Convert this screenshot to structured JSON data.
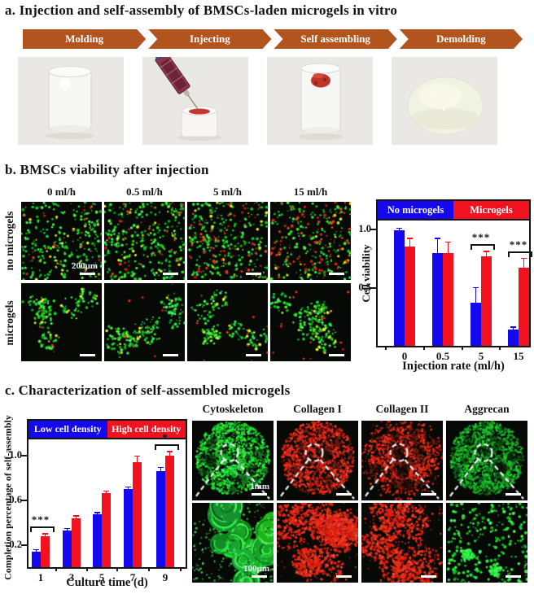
{
  "colors": {
    "arrow_orange": "#b2541e",
    "series_blue": "#1408ee",
    "series_red": "#f2121f",
    "micrograph_green": "#35d13c",
    "micrograph_red": "#e8281e"
  },
  "panel_a": {
    "title": "a. Injection and self-assembly of BMSCs-laden microgels in vitro",
    "steps": [
      "Molding",
      "Injecting",
      "Self assembling",
      "Demolding"
    ],
    "photos": [
      {
        "name": "empty-mold"
      },
      {
        "name": "syringe-injecting-microgels"
      },
      {
        "name": "self-assembled-construct"
      },
      {
        "name": "demolded-gel-disc"
      }
    ]
  },
  "panel_b": {
    "title": "b. BMSCs viability after injection",
    "col_labels": [
      "0 ml/h",
      "0.5 ml/h",
      "5 ml/h",
      "15 ml/h"
    ],
    "row_labels": [
      "no microgels",
      "microgels"
    ],
    "cells": [
      {
        "row": "no microgels",
        "col": "0 ml/h",
        "mode": "scatter",
        "green": 260,
        "red": 16,
        "seed": 1,
        "scale_label": "200µm"
      },
      {
        "row": "no microgels",
        "col": "0.5 ml/h",
        "mode": "scatter",
        "green": 300,
        "red": 30,
        "seed": 2
      },
      {
        "row": "no microgels",
        "col": "5 ml/h",
        "mode": "scatter",
        "green": 255,
        "red": 70,
        "seed": 3
      },
      {
        "row": "no microgels",
        "col": "15 ml/h",
        "mode": "scatter",
        "green": 205,
        "red": 95,
        "seed": 4
      },
      {
        "row": "microgels",
        "col": "0 ml/h",
        "mode": "clusters",
        "k": 6,
        "per": 27,
        "red": 4,
        "seed": 5
      },
      {
        "row": "microgels",
        "col": "0.5 ml/h",
        "mode": "clusters",
        "k": 7,
        "per": 26,
        "red": 8,
        "seed": 6
      },
      {
        "row": "microgels",
        "col": "5 ml/h",
        "mode": "clusters",
        "k": 6,
        "per": 27,
        "red": 12,
        "seed": 7
      },
      {
        "row": "microgels",
        "col": "15 ml/h",
        "mode": "clusters",
        "k": 7,
        "per": 26,
        "red": 14,
        "seed": 8
      }
    ]
  },
  "panel_c": {
    "title": "c. Characterization of self-assembled microgels",
    "col_labels": [
      "Cytoskeleton",
      "Collagen I",
      "Collagen II",
      "Aggrecan"
    ],
    "cells": [
      {
        "row": "overview",
        "col": "Cytoskeleton",
        "mode": "disc",
        "color": "green",
        "seed": 11,
        "overlay": true,
        "scale_label": "1mm"
      },
      {
        "row": "overview",
        "col": "Collagen I",
        "mode": "disc",
        "color": "red",
        "seed": 12,
        "overlay": true
      },
      {
        "row": "overview",
        "col": "Collagen II",
        "mode": "disc",
        "color": "red",
        "ragged": true,
        "seed": 13,
        "overlay": true
      },
      {
        "row": "overview",
        "col": "Aggrecan",
        "mode": "disc",
        "color": "green",
        "dark": true,
        "seed": 14,
        "overlay": true
      },
      {
        "row": "magnified",
        "col": "Cytoskeleton",
        "mode": "rosettes",
        "seed": 21,
        "scale_label": "100µm"
      },
      {
        "row": "magnified",
        "col": "Collagen I",
        "mode": "redblobs",
        "blobs": 8,
        "seed": 22
      },
      {
        "row": "magnified",
        "col": "Collagen II",
        "mode": "redblobs",
        "blobs": 5,
        "seed": 23
      },
      {
        "row": "magnified",
        "col": "Aggrecan",
        "mode": "spots",
        "seed": 24
      }
    ]
  },
  "chart_data": [
    {
      "id": "cell-viability",
      "type": "bar",
      "title": "",
      "ylabel": "Cell viability",
      "xlabel": "Injection rate (ml/h)",
      "categories": [
        "0",
        "0.5",
        "5",
        "15"
      ],
      "ylim": [
        0,
        1.25
      ],
      "grid": false,
      "legend_position": "top band inside plot",
      "yticks": [
        {
          "value": 0.5,
          "label": "0.5"
        },
        {
          "value": 1.0,
          "label": "1.0"
        }
      ],
      "series": [
        {
          "name": "No microgels",
          "color": "#1408ee",
          "values": [
            0.99,
            0.8,
            0.37,
            0.14
          ],
          "errors": [
            0.02,
            0.12,
            0.13,
            0.02
          ]
        },
        {
          "name": "Microgels",
          "color": "#f2121f",
          "values": [
            0.85,
            0.8,
            0.77,
            0.67
          ],
          "errors": [
            0.07,
            0.09,
            0.04,
            0.08
          ]
        }
      ],
      "significance": [
        {
          "category_index": 2,
          "label": "***"
        },
        {
          "category_index": 3,
          "label": "***"
        }
      ]
    },
    {
      "id": "self-assembly-completion",
      "type": "bar",
      "title": "",
      "ylabel": "Completion percentage of self-assembly",
      "xlabel": "Culture time (d)",
      "categories": [
        "1",
        "3",
        "5",
        "7",
        "9"
      ],
      "ylim": [
        0,
        1.31
      ],
      "grid": false,
      "legend_position": "top band inside plot",
      "yticks": [
        {
          "value": 0.2,
          "label": "0.2"
        },
        {
          "value": 0.6,
          "label": "0.6"
        },
        {
          "value": 1.0,
          "label": "1.0"
        }
      ],
      "series": [
        {
          "name": "Low cell density",
          "color": "#1408ee",
          "values": [
            0.14,
            0.33,
            0.47,
            0.7,
            0.86
          ],
          "errors": [
            0.015,
            0.015,
            0.015,
            0.015,
            0.03
          ]
        },
        {
          "name": "High cell density",
          "color": "#f2121f",
          "values": [
            0.28,
            0.44,
            0.66,
            0.94,
            1.0
          ],
          "errors": [
            0.015,
            0.015,
            0.02,
            0.05,
            0.03
          ]
        }
      ],
      "significance": [
        {
          "category_index": 0,
          "label": "***"
        },
        {
          "category_index": 4,
          "label": "*"
        }
      ]
    }
  ]
}
